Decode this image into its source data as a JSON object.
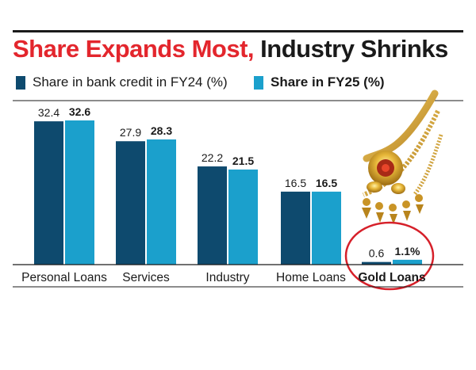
{
  "title": {
    "part1": "Share Expands Most,",
    "part2": "Industry Shrinks"
  },
  "colors": {
    "fy24": "#0e4a6e",
    "fy25": "#1ba0cc",
    "title_red": "#e3262d",
    "highlight_circle": "#d6202a"
  },
  "chart_data": {
    "type": "bar",
    "categories": [
      "Personal Loans",
      "Services",
      "Industry",
      "Home Loans",
      "Gold Loans"
    ],
    "series": [
      {
        "name": "Share in bank credit in FY24 (%)",
        "values": [
          32.4,
          27.9,
          22.2,
          16.5,
          0.6
        ],
        "labels": [
          "32.4",
          "27.9",
          "22.2",
          "16.5",
          "0.6"
        ]
      },
      {
        "name": "Share in FY25 (%)",
        "values": [
          32.6,
          28.3,
          21.5,
          16.5,
          1.1
        ],
        "labels": [
          "32.6",
          "28.3",
          "21.5",
          "16.5",
          "1.1%"
        ]
      }
    ],
    "ylim": [
      0,
      34
    ],
    "grid": false,
    "legend_position": "top-left",
    "highlighted_category": "Gold Loans"
  },
  "decoration": {
    "image": "gold-necklace"
  }
}
